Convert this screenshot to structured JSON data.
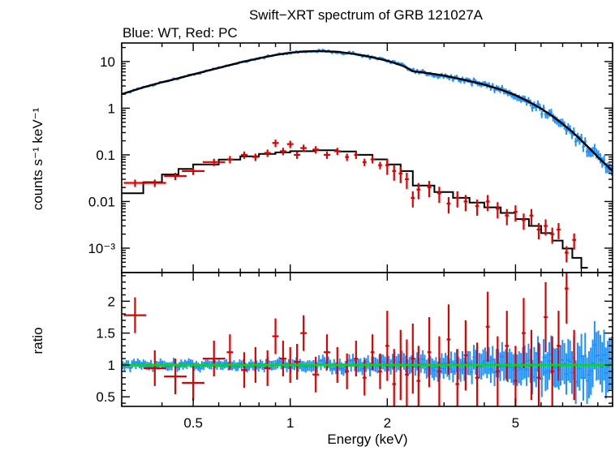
{
  "chart_data": {
    "type": "scatter",
    "title": "Swift−XRT spectrum of GRB 121027A",
    "subtitle": "Blue: WT, Red: PC",
    "xlabel": "Energy (keV)",
    "x_scale": "log",
    "xlim": [
      0.3,
      10
    ],
    "x_ticks": [
      {
        "value": 0.5,
        "label": "0.5"
      },
      {
        "value": 1,
        "label": "1"
      },
      {
        "value": 2,
        "label": "2"
      },
      {
        "value": 5,
        "label": "5"
      }
    ],
    "colors": {
      "wt": "#1e90ff",
      "pc": "#e00000",
      "model": "#000000",
      "unity": "#00e000"
    },
    "top_panel": {
      "ylabel": "counts s⁻¹ keV⁻¹",
      "y_scale": "log",
      "ylim": [
        0.0003,
        25
      ],
      "y_ticks": [
        {
          "value": 10,
          "label": "10"
        },
        {
          "value": 1,
          "label": "1"
        },
        {
          "value": 0.1,
          "label": "0.1"
        },
        {
          "value": 0.01,
          "label": "0.01"
        },
        {
          "value": 0.001,
          "label": "10⁻³"
        }
      ],
      "series": [
        {
          "key": "wt_model",
          "style": "line",
          "color": "#000000",
          "x": [
            0.3,
            0.32,
            0.35,
            0.4,
            0.45,
            0.5,
            0.6,
            0.7,
            0.8,
            0.9,
            1.0,
            1.1,
            1.2,
            1.4,
            1.6,
            1.8,
            2.0,
            2.2,
            2.3,
            2.4,
            2.6,
            3.0,
            3.5,
            4.0,
            4.5,
            5.0,
            5.5,
            6.0,
            6.5,
            7.0,
            7.5,
            8.0,
            8.5,
            9.0,
            9.5,
            10.0
          ],
          "y": [
            2.0,
            2.3,
            2.8,
            3.6,
            4.4,
            5.3,
            7.3,
            9.6,
            11.8,
            13.8,
            15.4,
            16.5,
            16.8,
            16.2,
            14.4,
            12.3,
            10.4,
            8.4,
            7.4,
            6.2,
            5.8,
            5.0,
            4.0,
            3.2,
            2.5,
            1.9,
            1.38,
            0.98,
            0.68,
            0.46,
            0.31,
            0.205,
            0.135,
            0.09,
            0.063,
            0.045
          ]
        },
        {
          "key": "pc_model",
          "style": "step",
          "color": "#000000",
          "x": [
            0.3,
            0.35,
            0.4,
            0.45,
            0.5,
            0.6,
            0.7,
            0.8,
            0.9,
            1.0,
            1.2,
            1.4,
            1.6,
            1.8,
            2.0,
            2.2,
            2.4,
            2.8,
            3.2,
            3.6,
            4.0,
            4.5,
            5.0,
            5.5,
            6.0,
            6.5,
            7.0,
            7.5,
            8.0
          ],
          "y": [
            0.015,
            0.026,
            0.038,
            0.05,
            0.062,
            0.079,
            0.093,
            0.105,
            0.113,
            0.12,
            0.125,
            0.118,
            0.1,
            0.08,
            0.062,
            0.045,
            0.022,
            0.016,
            0.012,
            0.0095,
            0.0075,
            0.0057,
            0.0042,
            0.003,
            0.0021,
            0.00145,
            0.00098,
            0.00062,
            0.00038
          ]
        },
        {
          "key": "pc_data",
          "style": "points",
          "color": "#e00000",
          "x": [
            0.33,
            0.38,
            0.44,
            0.5,
            0.58,
            0.65,
            0.72,
            0.78,
            0.85,
            0.9,
            0.95,
            1.0,
            1.05,
            1.1,
            1.2,
            1.3,
            1.4,
            1.5,
            1.6,
            1.7,
            1.8,
            1.9,
            2.0,
            2.1,
            2.2,
            2.3,
            2.4,
            2.5,
            2.7,
            2.9,
            3.1,
            3.3,
            3.5,
            3.8,
            4.1,
            4.4,
            4.7,
            5.0,
            5.3,
            5.6,
            5.9,
            6.2,
            6.5,
            6.8,
            7.2,
            7.6
          ],
          "y": [
            0.025,
            0.025,
            0.035,
            0.045,
            0.07,
            0.08,
            0.1,
            0.09,
            0.11,
            0.18,
            0.12,
            0.17,
            0.1,
            0.14,
            0.13,
            0.1,
            0.12,
            0.09,
            0.1,
            0.07,
            0.08,
            0.06,
            0.06,
            0.045,
            0.04,
            0.03,
            0.012,
            0.018,
            0.02,
            0.015,
            0.009,
            0.012,
            0.01,
            0.008,
            0.01,
            0.007,
            0.005,
            0.006,
            0.004,
            0.005,
            0.0025,
            0.003,
            0.002,
            0.0025,
            0.0008,
            0.0015
          ]
        }
      ]
    },
    "bottom_panel": {
      "ylabel": "ratio",
      "y_scale": "linear",
      "ylim": [
        0.35,
        2.45
      ],
      "y_ticks": [
        {
          "value": 0.5,
          "label": "0.5"
        },
        {
          "value": 1,
          "label": "1"
        },
        {
          "value": 1.5,
          "label": "1.5"
        },
        {
          "value": 2,
          "label": "2"
        }
      ],
      "reference_line": 1.0,
      "series": [
        {
          "key": "pc_ratio",
          "style": "points",
          "color": "#e00000",
          "x": [
            0.33,
            0.38,
            0.44,
            0.5,
            0.58,
            0.65,
            0.72,
            0.78,
            0.85,
            0.9,
            0.95,
            1.0,
            1.05,
            1.1,
            1.2,
            1.3,
            1.4,
            1.5,
            1.6,
            1.7,
            1.8,
            1.9,
            2.0,
            2.1,
            2.2,
            2.3,
            2.4,
            2.5,
            2.7,
            2.9,
            3.1,
            3.3,
            3.5,
            3.8,
            4.1,
            4.4,
            4.7,
            5.0,
            5.3,
            5.6,
            5.9,
            6.2,
            6.5,
            6.8,
            7.2,
            7.6
          ],
          "y": [
            1.78,
            0.95,
            0.82,
            0.72,
            1.1,
            1.2,
            0.92,
            1.0,
            0.95,
            1.45,
            1.1,
            1.0,
            1.05,
            1.5,
            0.85,
            1.2,
            1.0,
            0.9,
            1.1,
            0.8,
            1.2,
            0.9,
            1.3,
            0.7,
            1.0,
            0.85,
            1.1,
            0.75,
            1.2,
            0.9,
            1.4,
            0.7,
            1.15,
            0.8,
            1.6,
            0.9,
            1.3,
            0.75,
            1.5,
            1.0,
            0.8,
            1.75,
            0.9,
            1.3,
            2.2,
            1.0
          ]
        }
      ]
    }
  }
}
